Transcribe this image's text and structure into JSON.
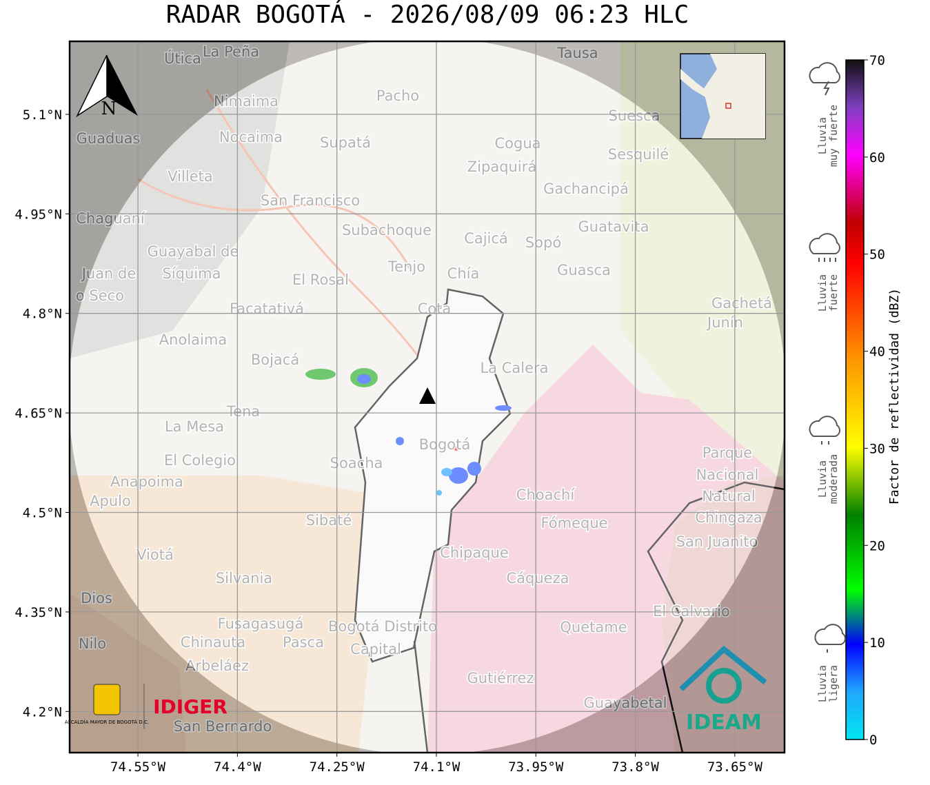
{
  "title": "RADAR BOGOTÁ - 2026/08/09 06:23 HLC",
  "map": {
    "xlim": [
      -74.653,
      -73.575
    ],
    "ylim": [
      4.138,
      5.21
    ],
    "xticks": [
      {
        "value": -74.55,
        "label": "74.55°W"
      },
      {
        "value": -74.4,
        "label": "74.4°W"
      },
      {
        "value": -74.25,
        "label": "74.25°W"
      },
      {
        "value": -74.1,
        "label": "74.1°W"
      },
      {
        "value": -73.95,
        "label": "73.95°W"
      },
      {
        "value": -73.8,
        "label": "73.8°W"
      },
      {
        "value": -73.65,
        "label": "73.65°W"
      }
    ],
    "yticks": [
      {
        "value": 5.1,
        "label": "5.1°N"
      },
      {
        "value": 4.95,
        "label": "4.95°N"
      },
      {
        "value": 4.8,
        "label": "4.8°N"
      },
      {
        "value": 4.65,
        "label": "4.65°N"
      },
      {
        "value": 4.5,
        "label": "4.5°N"
      },
      {
        "value": 4.35,
        "label": "4.35°N"
      },
      {
        "value": 4.2,
        "label": "4.2°N"
      }
    ],
    "grid": true,
    "north": "N",
    "places": [
      "Útica",
      "La Peña",
      "Tausa",
      "Pacho",
      "Nimaima",
      "Guaduas",
      "Nocaima",
      "Supatá",
      "Cogua",
      "Suesca",
      "Sesquilé",
      "Zipaquirá",
      "Villeta",
      "Gachancipá",
      "San Francisco",
      "Chaguaní",
      "Guatavita",
      "Subachoque",
      "Cajicá",
      "Sopó",
      "Guayabal de",
      "Síquima",
      "Juan de",
      "o Seco",
      "Tenjo",
      "Chía",
      "Guasca",
      "El Rosal",
      "Facatativá",
      "Cota",
      "Gachetá",
      "Junín",
      "Anolaima",
      "Bojacá",
      "La Calera",
      "Tena",
      "La Mesa",
      "Bogotá",
      "Parque",
      "Nacional",
      "Natural",
      "Chingaza",
      "El Colegio",
      "Soacha",
      "Anapoima",
      "Apulo",
      "Choachí",
      "Sibaté",
      "Fómeque",
      "San Juanito",
      "Viotá",
      "Chipaque",
      "Silvania",
      "Cáqueza",
      "Dios",
      "El Calvario",
      "Fusagasugá",
      "Bogotá Distrito",
      "Capital",
      "Quetame",
      "Nilo",
      "Chinauta",
      "Pasca",
      "Arbeláez",
      "Gutiérrez",
      "Guayabetal",
      "San Bernardo"
    ],
    "logos": {
      "alcaldia": "ALCALDÍA MAYOR DE BOGOTÁ D.C.",
      "idiger": "IDIGER",
      "ideam": "IDEAM"
    }
  },
  "colorbar": {
    "label": "Factor de reflectividad (dBZ)",
    "lim": [
      0,
      70
    ],
    "ticks": [
      0,
      10,
      20,
      30,
      40,
      50,
      60,
      70
    ]
  },
  "rain_classes": [
    [
      "Lluvia",
      "muy fuerte"
    ],
    [
      "Lluvia",
      "fuerte"
    ],
    [
      "Lluvia",
      "moderada"
    ],
    [
      "Lluvia",
      "ligera"
    ]
  ]
}
